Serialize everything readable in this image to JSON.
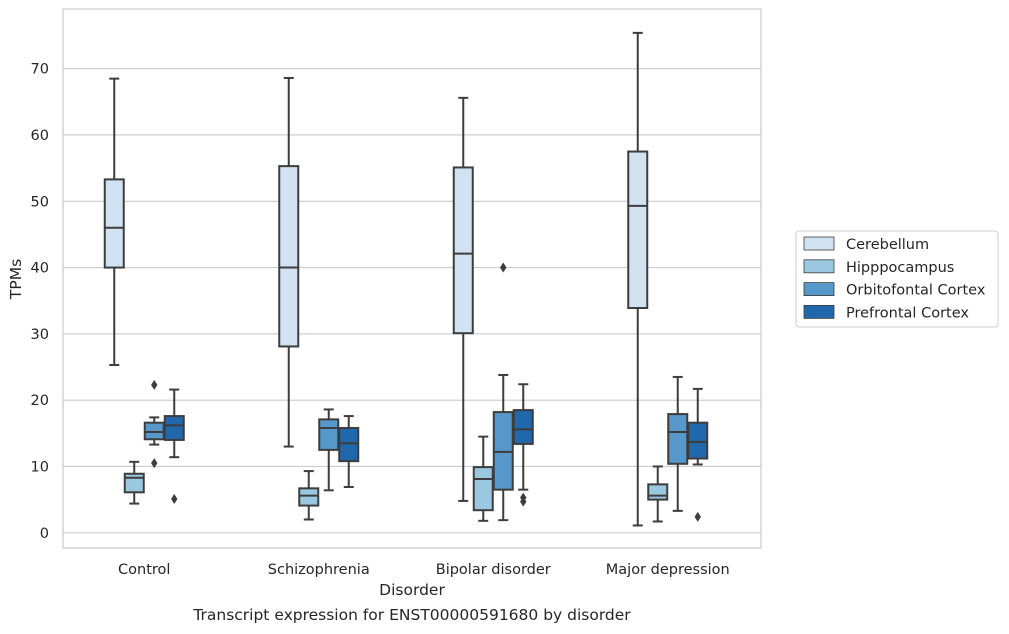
{
  "caption": "Transcript expression for ENST00000591680 by disorder",
  "chart_data": {
    "type": "box",
    "title": "",
    "xlabel": "Disorder",
    "ylabel": "TPMs",
    "ylim": [
      -2.3,
      79
    ],
    "yticks": [
      0,
      10,
      20,
      30,
      40,
      50,
      60,
      70
    ],
    "grid": "horizontal",
    "legend_position": "right",
    "categories": [
      "Control",
      "Schizophrenia",
      "Bipolar disorder",
      "Major depression"
    ],
    "series": [
      {
        "name": "Cerebellum",
        "color": "#d1e2f2",
        "boxes": [
          {
            "whisker_low": 25.3,
            "q1": 40.0,
            "median": 46.0,
            "q3": 53.3,
            "whisker_high": 68.5,
            "outliers": []
          },
          {
            "whisker_low": 13.0,
            "q1": 28.1,
            "median": 40.0,
            "q3": 55.3,
            "whisker_high": 68.6,
            "outliers": []
          },
          {
            "whisker_low": 4.8,
            "q1": 30.1,
            "median": 42.1,
            "q3": 55.1,
            "whisker_high": 65.6,
            "outliers": []
          },
          {
            "whisker_low": 1.1,
            "q1": 33.9,
            "median": 49.3,
            "q3": 57.5,
            "whisker_high": 75.4,
            "outliers": []
          }
        ]
      },
      {
        "name": "Hipppocampus",
        "color": "#9ac8e0",
        "boxes": [
          {
            "whisker_low": 4.4,
            "q1": 6.1,
            "median": 8.3,
            "q3": 8.9,
            "whisker_high": 10.7,
            "outliers": []
          },
          {
            "whisker_low": 2.0,
            "q1": 4.1,
            "median": 5.6,
            "q3": 6.7,
            "whisker_high": 9.3,
            "outliers": []
          },
          {
            "whisker_low": 1.8,
            "q1": 3.4,
            "median": 8.1,
            "q3": 9.9,
            "whisker_high": 14.5,
            "outliers": []
          },
          {
            "whisker_low": 1.7,
            "q1": 5.0,
            "median": 5.6,
            "q3": 7.3,
            "whisker_high": 10.0,
            "outliers": []
          }
        ]
      },
      {
        "name": "Orbitofontal Cortex",
        "color": "#5598c9",
        "boxes": [
          {
            "whisker_low": 13.3,
            "q1": 14.1,
            "median": 15.2,
            "q3": 16.6,
            "whisker_high": 17.4,
            "outliers": [
              22.3,
              10.5
            ]
          },
          {
            "whisker_low": 6.4,
            "q1": 12.5,
            "median": 15.8,
            "q3": 17.1,
            "whisker_high": 18.6,
            "outliers": []
          },
          {
            "whisker_low": 1.9,
            "q1": 6.5,
            "median": 12.2,
            "q3": 18.2,
            "whisker_high": 23.8,
            "outliers": [
              40.0
            ]
          },
          {
            "whisker_low": 3.3,
            "q1": 10.4,
            "median": 15.2,
            "q3": 17.9,
            "whisker_high": 23.5,
            "outliers": []
          }
        ]
      },
      {
        "name": "Prefrontal Cortex",
        "color": "#2067ab",
        "boxes": [
          {
            "whisker_low": 11.4,
            "q1": 14.0,
            "median": 16.2,
            "q3": 17.6,
            "whisker_high": 21.6,
            "outliers": [
              5.1
            ]
          },
          {
            "whisker_low": 6.9,
            "q1": 10.8,
            "median": 13.5,
            "q3": 15.8,
            "whisker_high": 17.6,
            "outliers": []
          },
          {
            "whisker_low": 6.5,
            "q1": 13.4,
            "median": 15.6,
            "q3": 18.5,
            "whisker_high": 22.4,
            "outliers": [
              5.3,
              4.7
            ]
          },
          {
            "whisker_low": 10.3,
            "q1": 11.2,
            "median": 13.7,
            "q3": 16.6,
            "whisker_high": 21.7,
            "outliers": [
              2.4
            ]
          }
        ]
      }
    ]
  }
}
